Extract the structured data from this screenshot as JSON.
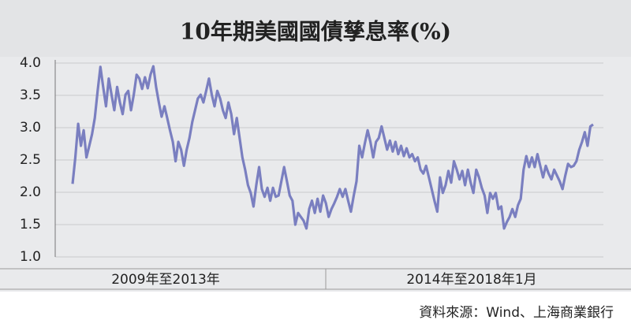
{
  "chart_data": {
    "type": "line",
    "title": "10年期美國國債孳息率(%)",
    "period_labels": [
      "2009年至2013年",
      "2014年至2018年1月"
    ],
    "series": [
      {
        "color": "#7a7fc0",
        "values": [
          2.13,
          2.54,
          3.06,
          2.72,
          2.96,
          2.54,
          2.72,
          2.9,
          3.15,
          3.57,
          3.94,
          3.63,
          3.33,
          3.76,
          3.51,
          3.27,
          3.63,
          3.39,
          3.21,
          3.51,
          3.57,
          3.27,
          3.51,
          3.82,
          3.76,
          3.6,
          3.78,
          3.61,
          3.82,
          3.95,
          3.63,
          3.39,
          3.17,
          3.33,
          3.15,
          2.96,
          2.78,
          2.48,
          2.78,
          2.66,
          2.41,
          2.66,
          2.84,
          3.09,
          3.27,
          3.45,
          3.51,
          3.39,
          3.57,
          3.76,
          3.51,
          3.33,
          3.57,
          3.45,
          3.27,
          3.15,
          3.39,
          3.21,
          2.9,
          3.15,
          2.84,
          2.54,
          2.35,
          2.11,
          1.99,
          1.78,
          2.11,
          2.39,
          2.05,
          1.93,
          2.07,
          1.87,
          2.07,
          1.93,
          1.95,
          2.17,
          2.39,
          2.17,
          1.95,
          1.87,
          1.5,
          1.68,
          1.62,
          1.56,
          1.44,
          1.74,
          1.87,
          1.68,
          1.9,
          1.7,
          1.95,
          1.83,
          1.62,
          1.74,
          1.83,
          1.93,
          2.05,
          1.93,
          2.05,
          1.87,
          1.7,
          1.95,
          2.17,
          2.72,
          2.54,
          2.76,
          2.96,
          2.78,
          2.54,
          2.78,
          2.84,
          3.02,
          2.84,
          2.66,
          2.8,
          2.63,
          2.78,
          2.59,
          2.72,
          2.56,
          2.68,
          2.54,
          2.59,
          2.48,
          2.54,
          2.35,
          2.29,
          2.41,
          2.23,
          2.05,
          1.87,
          1.7,
          2.23,
          1.99,
          2.11,
          2.33,
          2.15,
          2.48,
          2.35,
          2.2,
          2.33,
          2.11,
          2.35,
          2.15,
          1.99,
          2.35,
          2.23,
          2.07,
          1.95,
          1.68,
          1.99,
          1.9,
          1.99,
          1.74,
          1.78,
          1.44,
          1.54,
          1.62,
          1.74,
          1.62,
          1.8,
          1.9,
          2.35,
          2.56,
          2.39,
          2.54,
          2.39,
          2.59,
          2.41,
          2.23,
          2.41,
          2.29,
          2.2,
          2.35,
          2.26,
          2.17,
          2.05,
          2.26,
          2.44,
          2.39,
          2.41,
          2.48,
          2.66,
          2.78,
          2.93,
          2.72,
          3.02,
          3.05
        ]
      }
    ],
    "ylim": [
      1.0,
      4.0
    ],
    "yticks": [
      {
        "value": 1.0,
        "label": "1.0"
      },
      {
        "value": 1.5,
        "label": "1.5"
      },
      {
        "value": 2.0,
        "label": "2.0"
      },
      {
        "value": 2.5,
        "label": "2.5"
      },
      {
        "value": 3.0,
        "label": "3.0"
      },
      {
        "value": 3.5,
        "label": "3.5"
      },
      {
        "value": 4.0,
        "label": "4.0"
      }
    ],
    "grid": true,
    "source": "資料來源：Wind、上海商業銀行"
  }
}
